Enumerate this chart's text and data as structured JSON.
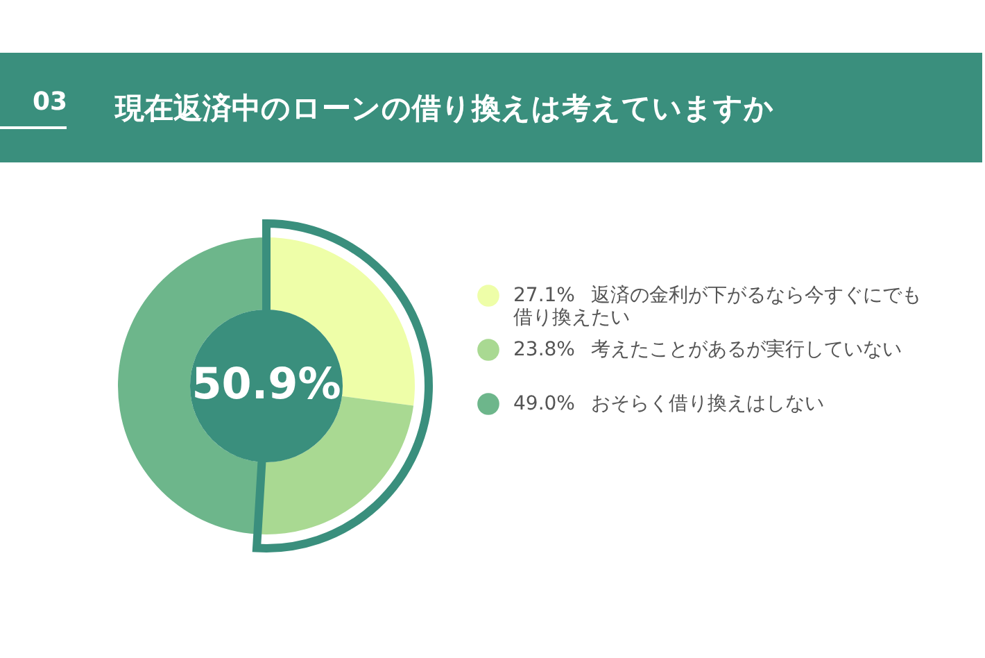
{
  "chart_data": {
    "type": "donut",
    "title": "現在返済中のローンの借り換えは考えていますか",
    "categories": [
      "返済の金利が下がるなら今すぐにでも借り換えたい",
      "考えたことがあるが実行していない",
      "おそらく借り換えはしない"
    ],
    "values": [
      27.1,
      23.8,
      49.0
    ],
    "colors": [
      "#eefea8",
      "#a9d992",
      "#6db68b"
    ],
    "value_labels": [
      "27.1%",
      "23.8%",
      "49.0%"
    ],
    "legend": "right",
    "annotations": [
      "03",
      "50.9%"
    ]
  }
}
